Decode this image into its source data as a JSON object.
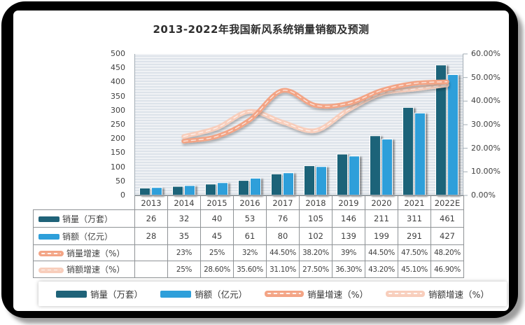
{
  "chart": {
    "title": "2013-2022年我国新风系统销量销额及预测"
  },
  "colors": {
    "bar_sales_volume": "#1F6379",
    "bar_sales_amount": "#2E9FDA",
    "line_volume_growth": "#F3A485",
    "line_amount_growth": "#F8CEBC",
    "axis_line": "#a3adb5",
    "table_border": "#8f9396",
    "plot_stripe_dark": "#dde3ea",
    "plot_stripe_light": "#f0f2f5"
  },
  "chart_data": {
    "type": "combo",
    "title": "2013-2022年我国新风系统销量销额及预测",
    "categories": [
      "2013",
      "2014",
      "2015",
      "2016",
      "2017",
      "2018",
      "2019",
      "2020",
      "2021",
      "2022E"
    ],
    "series": [
      {
        "name": "销量（万套）",
        "type": "bar",
        "axis": "left",
        "color": "#1F6379",
        "values": [
          26,
          32,
          40,
          53,
          76,
          105,
          146,
          211,
          311,
          461
        ],
        "display": [
          "26",
          "32",
          "40",
          "53",
          "76",
          "105",
          "146",
          "211",
          "311",
          "461"
        ]
      },
      {
        "name": "销额（亿元）",
        "type": "bar",
        "axis": "left",
        "color": "#2E9FDA",
        "values": [
          28,
          35,
          45,
          61,
          80,
          102,
          139,
          199,
          291,
          427
        ],
        "display": [
          "28",
          "35",
          "45",
          "61",
          "80",
          "102",
          "139",
          "199",
          "291",
          "427"
        ]
      },
      {
        "name": "销量增速（%）",
        "type": "line",
        "axis": "right",
        "color": "#F3A485",
        "values": [
          null,
          23,
          25,
          32,
          44.5,
          38.2,
          39,
          44.5,
          47.5,
          48.2
        ],
        "display": [
          "",
          "23%",
          "25%",
          "32%",
          "44.50%",
          "38.20%",
          "39%",
          "44.50%",
          "47.50%",
          "48.20%"
        ]
      },
      {
        "name": "销额增速（%）",
        "type": "line",
        "axis": "right",
        "color": "#F8CEBC",
        "values": [
          null,
          25,
          28.6,
          35.6,
          31.1,
          27.5,
          36.3,
          43.2,
          45.1,
          46.9
        ],
        "display": [
          "",
          "25%",
          "28.60%",
          "35.60%",
          "31.10%",
          "27.50%",
          "36.30%",
          "43.20%",
          "45.10%",
          "46.90%"
        ]
      }
    ],
    "left_axis": {
      "min": 0,
      "max": 500,
      "step": 50,
      "ticks": [
        "500",
        "450",
        "400",
        "350",
        "300",
        "250",
        "200",
        "150",
        "100",
        "50",
        "0"
      ]
    },
    "right_axis": {
      "min": 0,
      "max": 60,
      "step": 10,
      "ticks": [
        "60.00%",
        "50.00%",
        "40.00%",
        "30.00%",
        "20.00%",
        "10.00%",
        "0.00%"
      ]
    },
    "grid": "horizontal-minor",
    "legend_position": "bottom",
    "table_shown": true
  }
}
